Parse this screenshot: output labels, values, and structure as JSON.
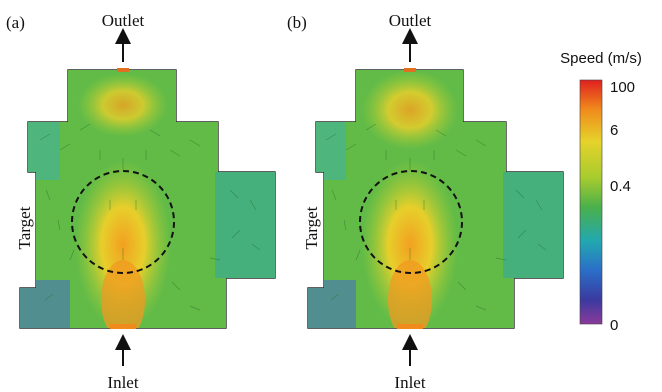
{
  "panels": [
    {
      "tag": "(a)",
      "outlet": "Outlet",
      "inlet": "Inlet",
      "target": "Target"
    },
    {
      "tag": "(b)",
      "outlet": "Outlet",
      "inlet": "Inlet",
      "target": "Target"
    }
  ],
  "colorbar": {
    "title": "Speed (m/s)",
    "ticks": [
      "100",
      "6",
      "0.4",
      "0"
    ],
    "colors": [
      "#e02020",
      "#f08a1c",
      "#e6d22a",
      "#a8cc2e",
      "#4bb04a",
      "#22a8b0",
      "#2a6fc8",
      "#3a3aa0",
      "#8a3a9a"
    ]
  }
}
